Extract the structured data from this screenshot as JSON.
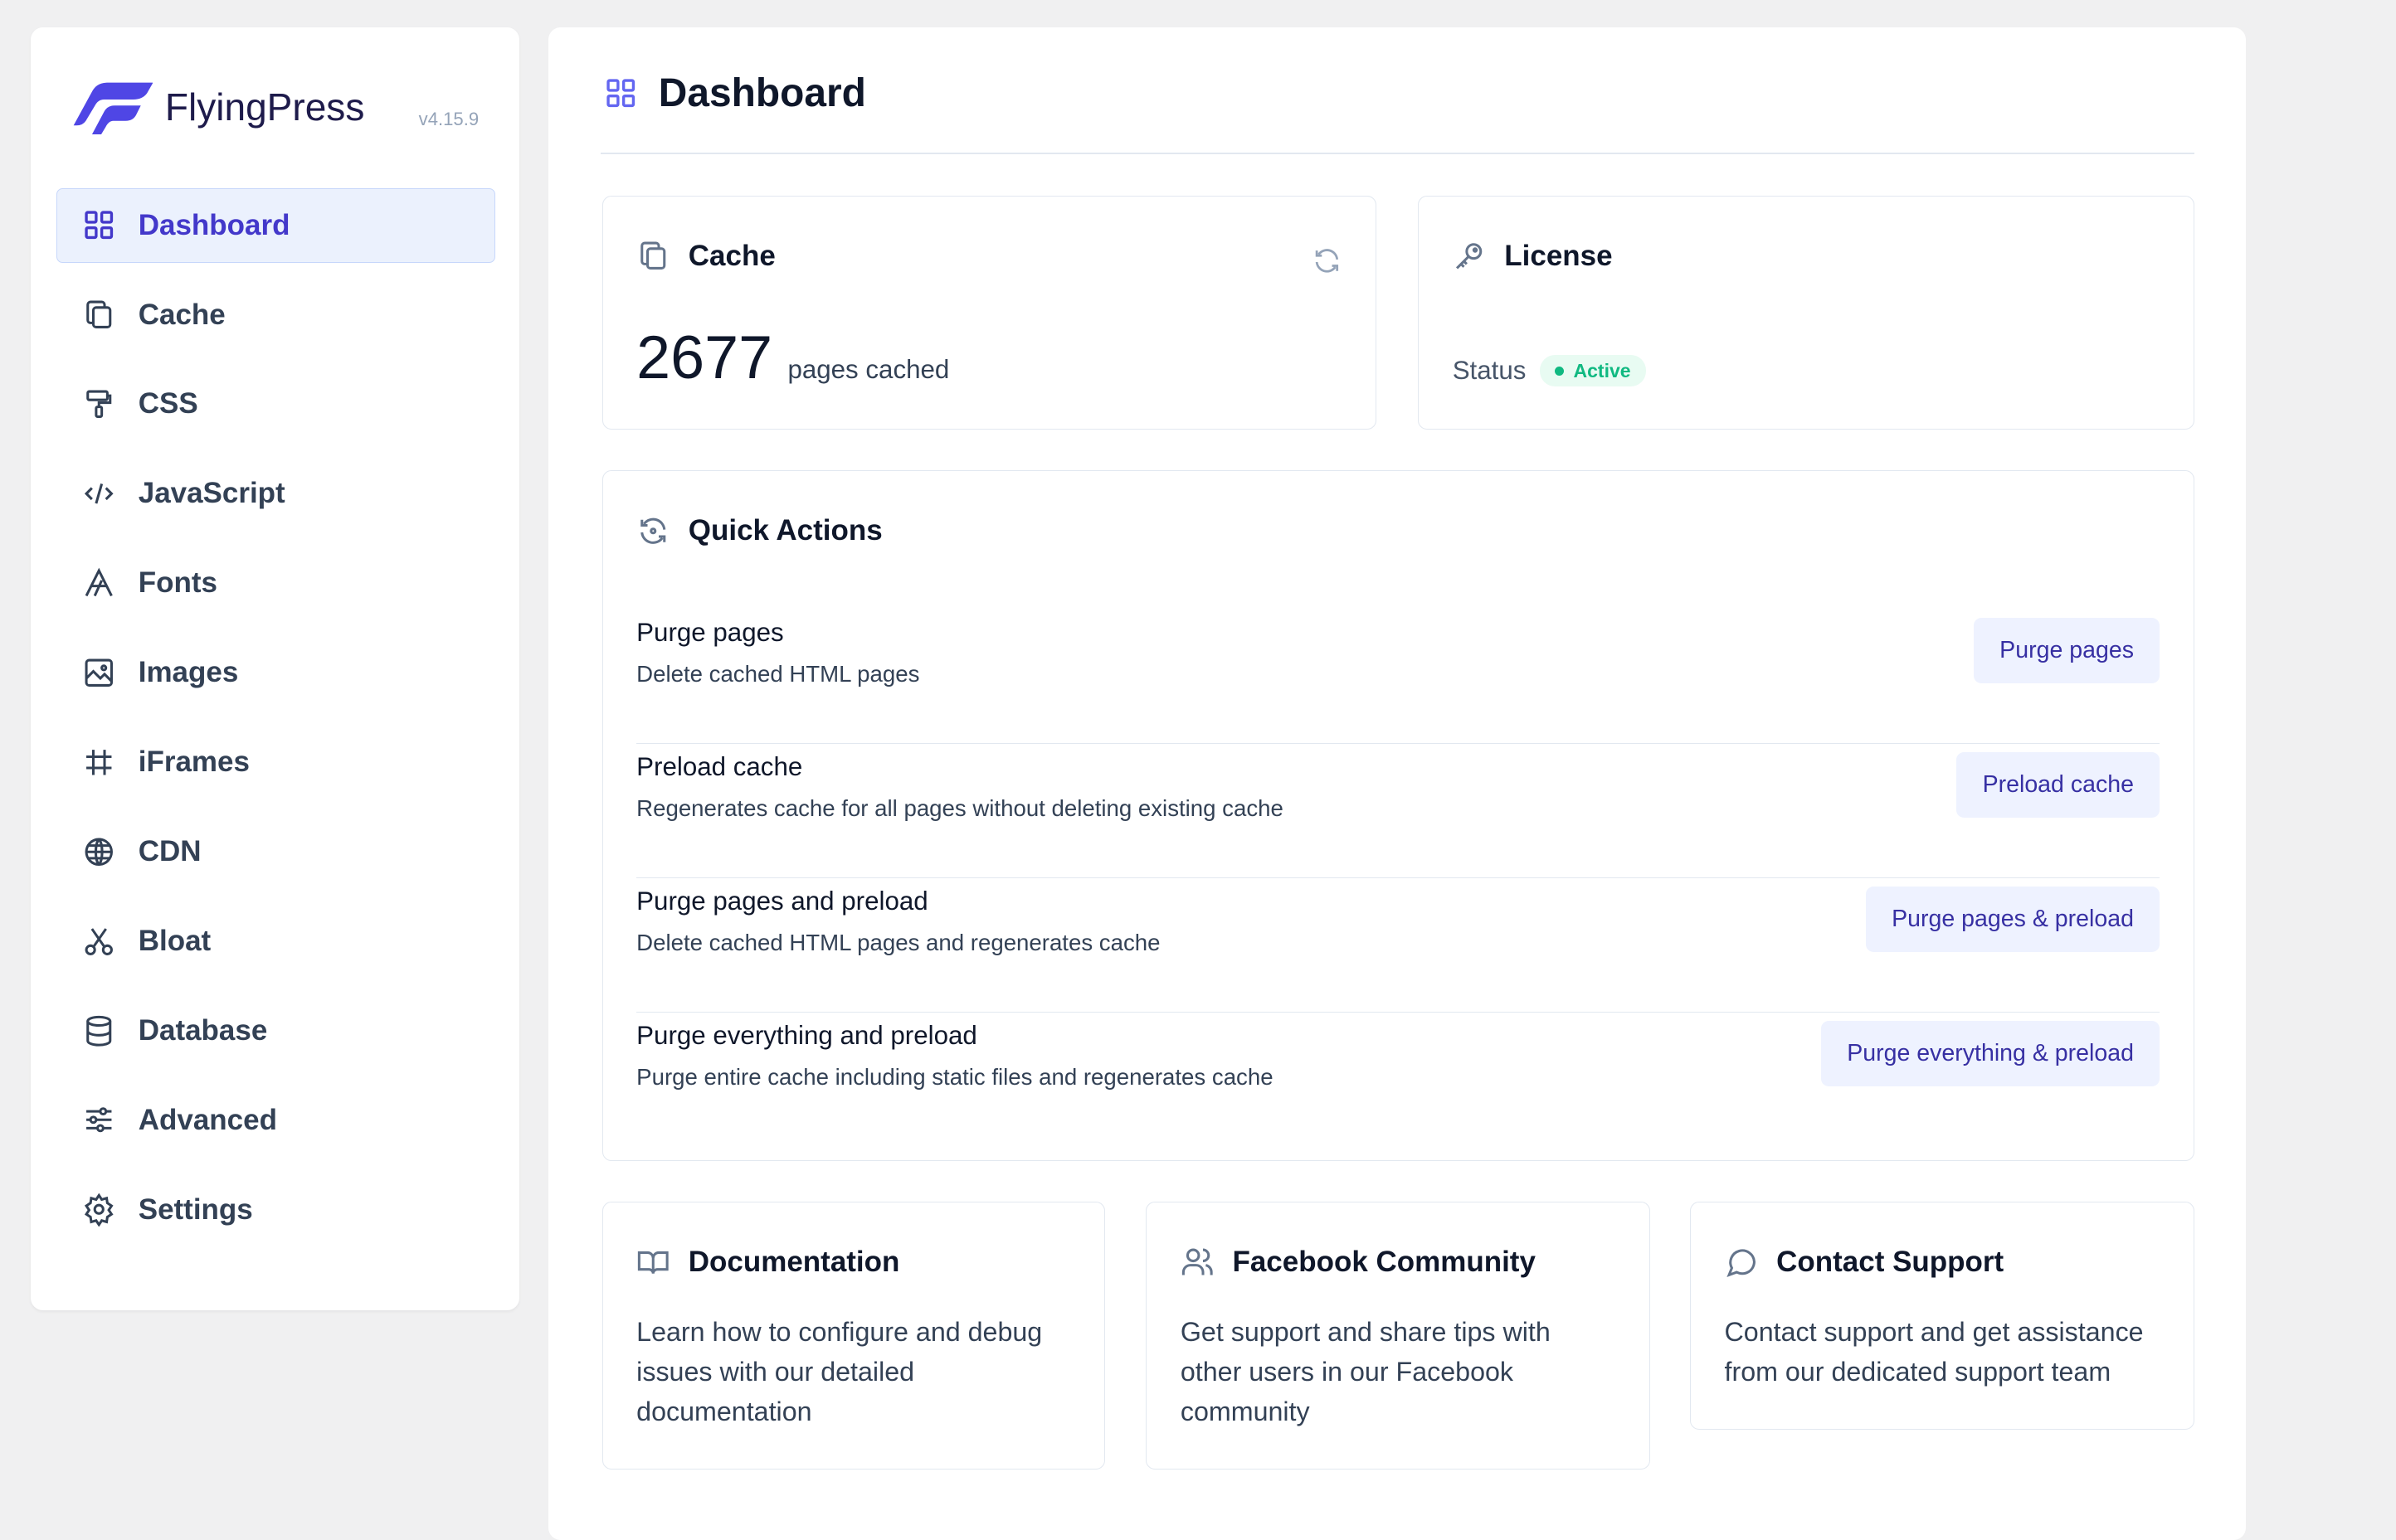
{
  "brand": {
    "name": "FlyingPress",
    "version": "v4.15.9",
    "color": "#4f46e5"
  },
  "sidebar": {
    "items": [
      {
        "label": "Dashboard",
        "icon": "grid-icon",
        "active": true
      },
      {
        "label": "Cache",
        "icon": "copy-icon"
      },
      {
        "label": "CSS",
        "icon": "paint-roller-icon"
      },
      {
        "label": "JavaScript",
        "icon": "code-icon"
      },
      {
        "label": "Fonts",
        "icon": "font-icon"
      },
      {
        "label": "Images",
        "icon": "image-icon"
      },
      {
        "label": "iFrames",
        "icon": "hash-icon"
      },
      {
        "label": "CDN",
        "icon": "globe-icon"
      },
      {
        "label": "Bloat",
        "icon": "scissors-icon"
      },
      {
        "label": "Database",
        "icon": "database-icon"
      },
      {
        "label": "Advanced",
        "icon": "sliders-icon"
      },
      {
        "label": "Settings",
        "icon": "gear-icon"
      }
    ]
  },
  "header": {
    "title": "Dashboard"
  },
  "cache": {
    "title": "Cache",
    "count": "2677",
    "count_label": "pages cached"
  },
  "license": {
    "title": "License",
    "status_label": "Status",
    "status": "Active",
    "status_color": "#10b981"
  },
  "quick_actions": {
    "title": "Quick Actions",
    "items": [
      {
        "title": "Purge pages",
        "desc": "Delete cached HTML pages",
        "button": "Purge pages"
      },
      {
        "title": "Preload cache",
        "desc": "Regenerates cache for all pages without deleting existing cache",
        "button": "Preload cache"
      },
      {
        "title": "Purge pages and preload",
        "desc": "Delete cached HTML pages and regenerates cache",
        "button": "Purge pages & preload"
      },
      {
        "title": "Purge everything and preload",
        "desc": "Purge entire cache including static files and regenerates cache",
        "button": "Purge everything & preload"
      }
    ]
  },
  "resources": [
    {
      "title": "Documentation",
      "text": "Learn how to configure and debug issues with our detailed documentation",
      "icon": "book-icon"
    },
    {
      "title": "Facebook Community",
      "text": "Get support and share tips with other users in our Facebook community",
      "icon": "users-icon"
    },
    {
      "title": "Contact Support",
      "text": "Contact support and get assistance from our dedicated support team",
      "icon": "chat-icon"
    }
  ]
}
